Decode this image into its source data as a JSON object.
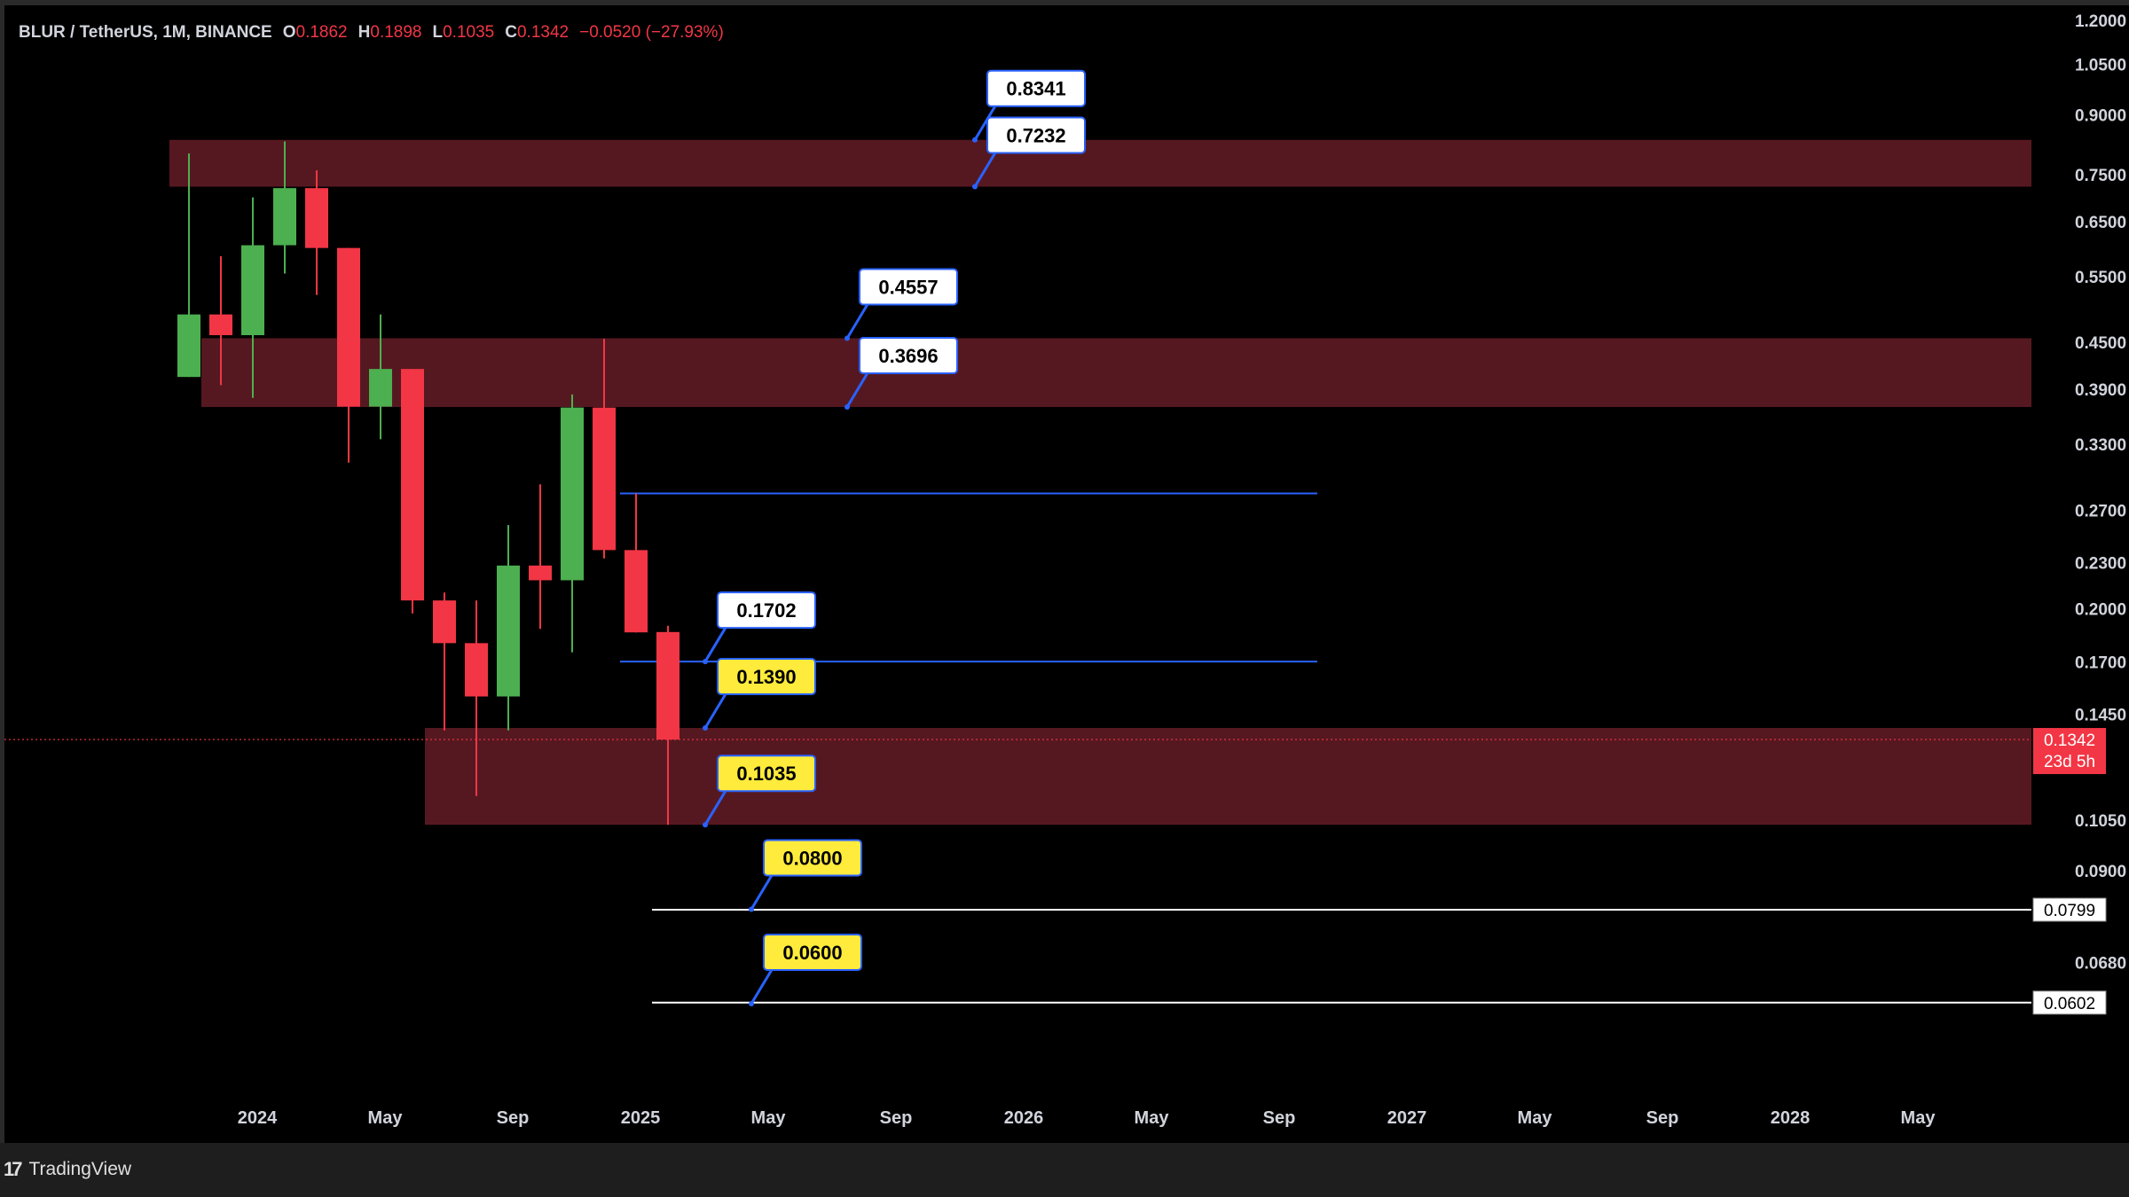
{
  "legend": {
    "symbol": "BLUR / TetherUS, 1M, BINANCE",
    "open_label": "O",
    "open": "0.1862",
    "high_label": "H",
    "high": "0.1898",
    "low_label": "L",
    "low": "0.1035",
    "close_label": "C",
    "close": "0.1342",
    "change": "−0.0520 (−27.93%)"
  },
  "brand": {
    "name": "TradingView",
    "logo_mark": "17"
  },
  "colors": {
    "bull": "#4caf50",
    "bear": "#f23645",
    "zone": "#561820",
    "background": "#000000",
    "axis_text": "#d1d4dc",
    "callout_yellow": "#ffeb3b",
    "callout_white": "#ffffff",
    "callout_border": "#2962ff"
  },
  "chart_data": {
    "type": "candlestick",
    "symbol": "BLUR / TetherUS",
    "interval": "1M",
    "exchange": "BINANCE",
    "y_scale": "log",
    "ylim": [
      0.052,
      1.21
    ],
    "xlim": [
      "2023-07",
      "2028-11"
    ],
    "price_ticks": [
      "1.2000",
      "1.0500",
      "0.9000",
      "0.7500",
      "0.6500",
      "0.5500",
      "0.4500",
      "0.3900",
      "0.3300",
      "0.2700",
      "0.2300",
      "0.2000",
      "0.1700",
      "0.1450",
      "0.1050",
      "0.0900",
      "0.0680"
    ],
    "time_ticks": [
      "2024",
      "May",
      "Sep",
      "2025",
      "May",
      "Sep",
      "2026",
      "May",
      "Sep",
      "2027",
      "May",
      "Sep",
      "2028",
      "May"
    ],
    "time_tick_dates": [
      "2024-01",
      "2024-05",
      "2024-09",
      "2025-01",
      "2025-05",
      "2025-09",
      "2026-01",
      "2026-05",
      "2026-09",
      "2027-01",
      "2027-05",
      "2027-09",
      "2028-01",
      "2028-05"
    ],
    "candles": [
      {
        "t": "2023-11",
        "o": 0.405,
        "h": 0.8,
        "l": 0.405,
        "c": 0.49
      },
      {
        "t": "2023-12",
        "o": 0.49,
        "h": 0.585,
        "l": 0.395,
        "c": 0.46
      },
      {
        "t": "2024-01",
        "o": 0.46,
        "h": 0.7,
        "l": 0.38,
        "c": 0.605
      },
      {
        "t": "2024-02",
        "o": 0.605,
        "h": 0.83,
        "l": 0.555,
        "c": 0.72
      },
      {
        "t": "2024-03",
        "o": 0.72,
        "h": 0.76,
        "l": 0.52,
        "c": 0.6
      },
      {
        "t": "2024-04",
        "o": 0.6,
        "h": 0.6,
        "l": 0.312,
        "c": 0.37
      },
      {
        "t": "2024-05",
        "o": 0.37,
        "h": 0.49,
        "l": 0.335,
        "c": 0.415
      },
      {
        "t": "2024-06",
        "o": 0.415,
        "h": 0.415,
        "l": 0.197,
        "c": 0.205
      },
      {
        "t": "2024-07",
        "o": 0.205,
        "h": 0.21,
        "l": 0.138,
        "c": 0.18
      },
      {
        "t": "2024-08",
        "o": 0.18,
        "h": 0.205,
        "l": 0.113,
        "c": 0.153
      },
      {
        "t": "2024-09",
        "o": 0.153,
        "h": 0.258,
        "l": 0.138,
        "c": 0.228
      },
      {
        "t": "2024-10",
        "o": 0.228,
        "h": 0.292,
        "l": 0.188,
        "c": 0.218
      },
      {
        "t": "2024-11",
        "o": 0.218,
        "h": 0.384,
        "l": 0.175,
        "c": 0.369
      },
      {
        "t": "2024-12",
        "o": 0.369,
        "h": 0.455,
        "l": 0.233,
        "c": 0.239
      },
      {
        "t": "2025-01",
        "o": 0.239,
        "h": 0.284,
        "l": 0.186,
        "c": 0.186
      },
      {
        "t": "2025-02",
        "o": 0.1862,
        "h": 0.1898,
        "l": 0.1035,
        "c": 0.1342
      }
    ],
    "zones": [
      {
        "top": 0.8341,
        "bottom": 0.7232,
        "from": "2023-11"
      },
      {
        "top": 0.4557,
        "bottom": 0.3696,
        "from": "2023-12"
      },
      {
        "top": 0.139,
        "bottom": 0.1035,
        "from": "2024-07"
      }
    ],
    "hlines": [
      {
        "price": 0.284,
        "from": "2025-01",
        "to": "2026-10",
        "color": "#2962ff"
      },
      {
        "price": 0.1702,
        "from": "2025-01",
        "to": "2026-10",
        "color": "#2962ff"
      },
      {
        "price": 0.0799,
        "from": "2025-02",
        "to": "2028-11",
        "color": "#ffffff",
        "axis_label": "0.0799"
      },
      {
        "price": 0.0602,
        "from": "2025-02",
        "to": "2028-11",
        "color": "#ffffff",
        "axis_label": "0.0602"
      }
    ],
    "callouts": [
      {
        "text": "0.8341",
        "price": 0.8341,
        "t": "2025-12",
        "style": "white"
      },
      {
        "text": "0.7232",
        "price": 0.7232,
        "t": "2025-12",
        "style": "white"
      },
      {
        "text": "0.4557",
        "price": 0.4557,
        "t": "2025-08",
        "style": "white"
      },
      {
        "text": "0.3696",
        "price": 0.3696,
        "t": "2025-08",
        "style": "white"
      },
      {
        "text": "0.1702",
        "price": 0.1702,
        "t": "2025-03",
        "style": "white"
      },
      {
        "text": "0.1390",
        "price": 0.139,
        "t": "2025-03",
        "style": "yellow"
      },
      {
        "text": "0.1035",
        "price": 0.1035,
        "t": "2025-03",
        "style": "yellow"
      },
      {
        "text": "0.0800",
        "price": 0.08,
        "t": "2025-05",
        "style": "yellow"
      },
      {
        "text": "0.0600",
        "price": 0.06,
        "t": "2025-05",
        "style": "yellow"
      }
    ],
    "last_price": {
      "price": 0.1342,
      "label": "0.1342",
      "countdown": "23d 5h"
    }
  }
}
